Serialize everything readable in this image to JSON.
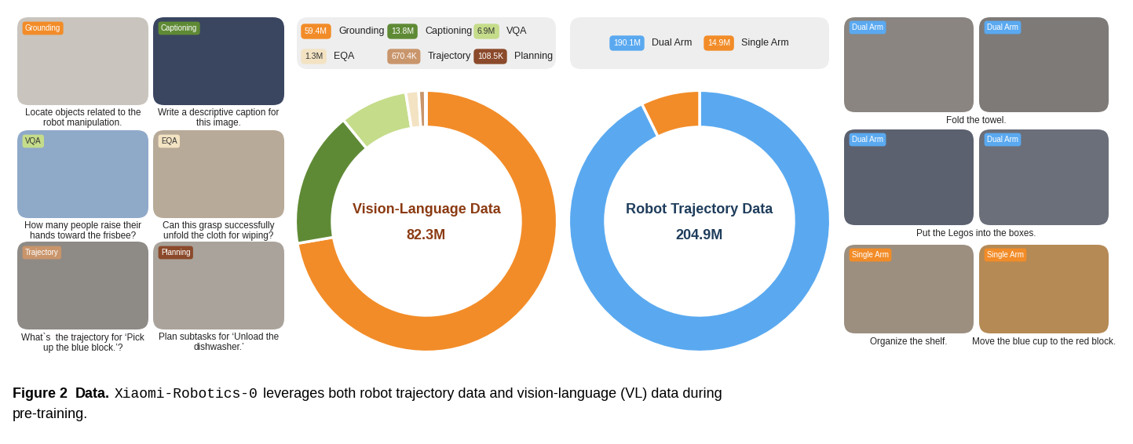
{
  "left_panels": [
    {
      "tag": "Grounding",
      "caption": "Locate objects related to the\nrobot manipulation."
    },
    {
      "tag": "Captioning",
      "caption": "Write a descriptive caption for\nthis image."
    },
    {
      "tag": "VQA",
      "caption": "How many people raise their\nhands toward the frisbee?"
    },
    {
      "tag": "EQA",
      "caption": "Can this grasp successfully\nunfold the cloth for wiping?"
    },
    {
      "tag": "Trajectory",
      "caption": "What`s  the trajectory for ‘Pick\nup the blue block.’?"
    },
    {
      "tag": "Planning",
      "caption": "Plan subtasks for ‘Unload the\ndishwasher.’"
    }
  ],
  "chart_data": [
    {
      "type": "pie",
      "title": "Vision-Language Data",
      "center_label": "82.3M",
      "legend": "top",
      "categories": [
        "Grounding",
        "Captioning",
        "VQA",
        "EQA",
        "Trajectory",
        "Planning"
      ],
      "values": [
        59.4,
        13.8,
        6.9,
        1.3,
        0.6704,
        0.1085
      ],
      "value_labels": [
        "59.4M",
        "13.8M",
        "6.9M",
        "1.3M",
        "670.4K",
        "108.5K"
      ],
      "colors": [
        "#f28c28",
        "#5f8a35",
        "#c5dc8a",
        "#f3e3c3",
        "#c9956b",
        "#8b4a2b"
      ]
    },
    {
      "type": "pie",
      "title": "Robot Trajectory Data",
      "center_label": "204.9M",
      "legend": "top",
      "categories": [
        "Dual Arm",
        "Single Arm"
      ],
      "values": [
        190.1,
        14.9
      ],
      "value_labels": [
        "190.1M",
        "14.9M"
      ],
      "colors": [
        "#5aa9f0",
        "#f28c28"
      ]
    }
  ],
  "right_panels": [
    {
      "tags": [
        "Dual Arm",
        "Dual Arm"
      ],
      "captions": [
        "Fold the towel."
      ]
    },
    {
      "tags": [
        "Dual Arm",
        "Dual Arm"
      ],
      "captions": [
        "Put the Legos into the boxes."
      ]
    },
    {
      "tags": [
        "Single Arm",
        "Single Arm"
      ],
      "captions": [
        "Organize the shelf.",
        "Move the blue cup to the red block."
      ]
    }
  ],
  "caption": {
    "label": "Figure 2",
    "heading": "Data.",
    "name": "Xiaomi-Robotics-0",
    "text": "leverages both robot trajectory data and vision-language (VL) data during\npre-training."
  }
}
